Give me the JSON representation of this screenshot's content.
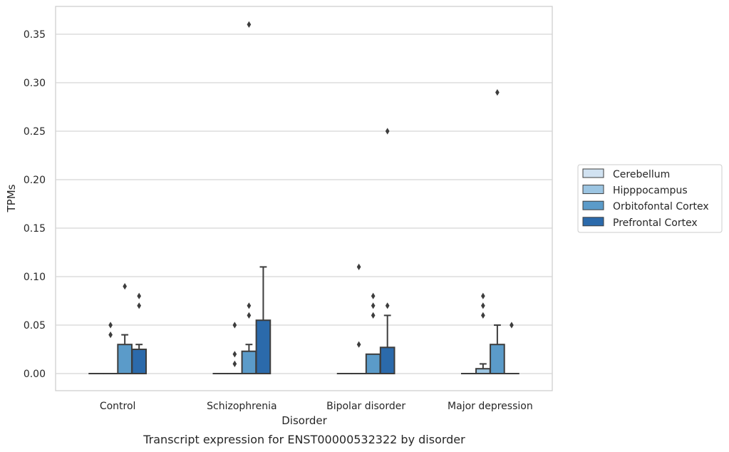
{
  "chart_data": {
    "type": "box",
    "xlabel": "Disorder",
    "ylabel": "TPMs",
    "caption": "Transcript expression for ENST00000532322 by disorder",
    "categories": [
      "Control",
      "Schizophrenia",
      "Bipolar disorder",
      "Major depression"
    ],
    "ylim": [
      -0.018,
      0.38
    ],
    "yticks": [
      0.0,
      0.05,
      0.1,
      0.15,
      0.2,
      0.25,
      0.3,
      0.35
    ],
    "ytick_labels": [
      "0.00",
      "0.05",
      "0.10",
      "0.15",
      "0.20",
      "0.25",
      "0.30",
      "0.35"
    ],
    "grid": "horizontal",
    "legend_position": "right",
    "series": [
      {
        "name": "Cerebellum",
        "color": "#d1e2f1",
        "boxes": [
          {
            "q1": 0,
            "median": 0,
            "q3": 0,
            "whisker_low": 0,
            "whisker_high": 0,
            "outliers": []
          },
          {
            "q1": 0,
            "median": 0,
            "q3": 0,
            "whisker_low": 0,
            "whisker_high": 0,
            "outliers": []
          },
          {
            "q1": 0,
            "median": 0,
            "q3": 0,
            "whisker_low": 0,
            "whisker_high": 0,
            "outliers": []
          },
          {
            "q1": 0,
            "median": 0,
            "q3": 0,
            "whisker_low": 0,
            "whisker_high": 0,
            "outliers": []
          }
        ]
      },
      {
        "name": "Hipppocampus",
        "color": "#9cc5e2",
        "boxes": [
          {
            "q1": 0,
            "median": 0,
            "q3": 0,
            "whisker_low": 0,
            "whisker_high": 0,
            "outliers": [
              0.04,
              0.05
            ]
          },
          {
            "q1": 0,
            "median": 0,
            "q3": 0,
            "whisker_low": 0,
            "whisker_high": 0,
            "outliers": [
              0.01,
              0.02,
              0.05
            ]
          },
          {
            "q1": 0,
            "median": 0,
            "q3": 0,
            "whisker_low": 0,
            "whisker_high": 0,
            "outliers": [
              0.03,
              0.11
            ]
          },
          {
            "q1": 0,
            "median": 0,
            "q3": 0.005,
            "whisker_low": 0,
            "whisker_high": 0.01,
            "outliers": [
              0.06,
              0.07,
              0.08
            ]
          }
        ]
      },
      {
        "name": "Orbitofontal Cortex",
        "color": "#5b9bc9",
        "boxes": [
          {
            "q1": 0,
            "median": 0,
            "q3": 0.03,
            "whisker_low": 0,
            "whisker_high": 0.04,
            "outliers": [
              0.09
            ]
          },
          {
            "q1": 0,
            "median": 0,
            "q3": 0.023,
            "whisker_low": 0,
            "whisker_high": 0.03,
            "outliers": [
              0.06,
              0.07,
              0.36
            ]
          },
          {
            "q1": 0,
            "median": 0,
            "q3": 0.02,
            "whisker_low": 0,
            "whisker_high": 0.02,
            "outliers": [
              0.06,
              0.07,
              0.08
            ]
          },
          {
            "q1": 0,
            "median": 0,
            "q3": 0.03,
            "whisker_low": 0,
            "whisker_high": 0.05,
            "outliers": [
              0.29
            ]
          }
        ]
      },
      {
        "name": "Prefrontal Cortex",
        "color": "#2b6aab",
        "boxes": [
          {
            "q1": 0,
            "median": 0,
            "q3": 0.025,
            "whisker_low": 0,
            "whisker_high": 0.03,
            "outliers": [
              0.07,
              0.08
            ]
          },
          {
            "q1": 0,
            "median": 0,
            "q3": 0.055,
            "whisker_low": 0,
            "whisker_high": 0.11,
            "outliers": []
          },
          {
            "q1": 0,
            "median": 0,
            "q3": 0.027,
            "whisker_low": 0,
            "whisker_high": 0.06,
            "outliers": [
              0.07,
              0.25
            ]
          },
          {
            "q1": 0,
            "median": 0,
            "q3": 0,
            "whisker_low": 0,
            "whisker_high": 0,
            "outliers": [
              0.05
            ]
          }
        ]
      }
    ]
  }
}
